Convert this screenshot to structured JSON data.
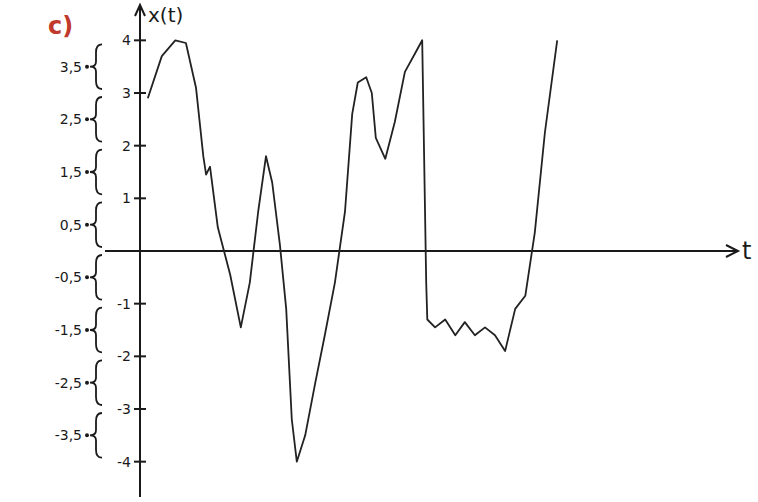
{
  "chart_data": {
    "type": "line",
    "title": "c)",
    "x_label": "t",
    "y_label": "x(t)",
    "xlim": [
      0,
      10
    ],
    "ylim": [
      -4.5,
      4.5
    ],
    "yticks": [
      -4,
      -3,
      -2,
      -1,
      1,
      2,
      3,
      4
    ],
    "tick_labels": "y",
    "levels": [
      {
        "value": 3.5,
        "label": "3,5"
      },
      {
        "value": 2.5,
        "label": "2,5"
      },
      {
        "value": 1.5,
        "label": "1,5"
      },
      {
        "value": 0.5,
        "label": "0,5"
      },
      {
        "value": -0.5,
        "label": "-0,5"
      },
      {
        "value": -1.5,
        "label": "-1,5"
      },
      {
        "value": -2.5,
        "label": "-2,5"
      },
      {
        "value": -3.5,
        "label": "-3,5"
      }
    ],
    "x": [
      0.14,
      0.39,
      0.63,
      0.82,
      1.0,
      1.13,
      1.18,
      1.25,
      1.39,
      1.61,
      1.8,
      1.96,
      2.11,
      2.25,
      2.36,
      2.5,
      2.61,
      2.71,
      2.8,
      2.95,
      3.13,
      3.3,
      3.48,
      3.66,
      3.79,
      3.89,
      4.04,
      4.14,
      4.21,
      4.38,
      4.55,
      4.73,
      4.91,
      5.04,
      5.11,
      5.13,
      5.27,
      5.45,
      5.63,
      5.8,
      5.98,
      6.16,
      6.34,
      6.52,
      6.7,
      6.88,
      7.05,
      7.23,
      7.45
    ],
    "series": [
      {
        "color": "#222222",
        "line_style": "solid",
        "values": [
          2.9,
          3.7,
          4.0,
          3.95,
          3.1,
          1.8,
          1.45,
          1.6,
          0.45,
          -0.45,
          -1.45,
          -0.6,
          0.75,
          1.8,
          1.3,
          0.1,
          -1.1,
          -3.2,
          -4.0,
          -3.5,
          -2.5,
          -1.6,
          -0.6,
          0.75,
          2.6,
          3.2,
          3.3,
          3.0,
          2.15,
          1.75,
          2.45,
          3.4,
          3.75,
          4.0,
          -0.6,
          -1.3,
          -1.45,
          -1.3,
          -1.6,
          -1.35,
          -1.6,
          -1.45,
          -1.6,
          -1.9,
          -1.1,
          -0.85,
          0.35,
          2.25,
          4.0
        ]
      }
    ]
  }
}
